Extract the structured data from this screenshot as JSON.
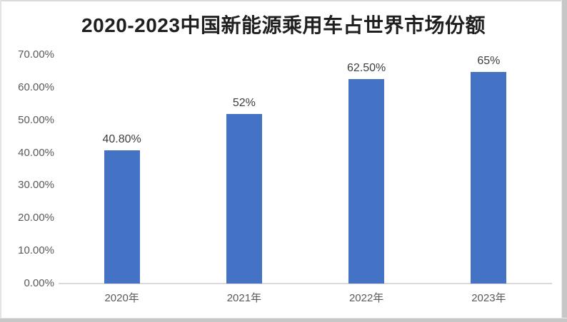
{
  "chart_data": {
    "type": "bar",
    "title": "2020-2023中国新能源乘用车占世界市场份额",
    "categories": [
      "2020年",
      "2021年",
      "2022年",
      "2023年"
    ],
    "values": [
      40.8,
      52,
      62.5,
      65
    ],
    "data_labels": [
      "40.80%",
      "52%",
      "62.50%",
      "65%"
    ],
    "y_ticks": [
      "0.00%",
      "10.00%",
      "20.00%",
      "30.00%",
      "40.00%",
      "50.00%",
      "60.00%",
      "70.00%"
    ],
    "y_tick_values": [
      0,
      10,
      20,
      30,
      40,
      50,
      60,
      70
    ],
    "ylim": [
      0,
      70
    ],
    "xlabel": "",
    "ylabel": "",
    "grid": false,
    "legend": "none",
    "bar_color": "#4472C4"
  },
  "colors": {
    "bar": "#4472C4",
    "title_text": "#1F1F1F",
    "axis_text": "#595959",
    "data_label_text": "#3D3D3D",
    "axis_line": "#D9D9D9"
  }
}
